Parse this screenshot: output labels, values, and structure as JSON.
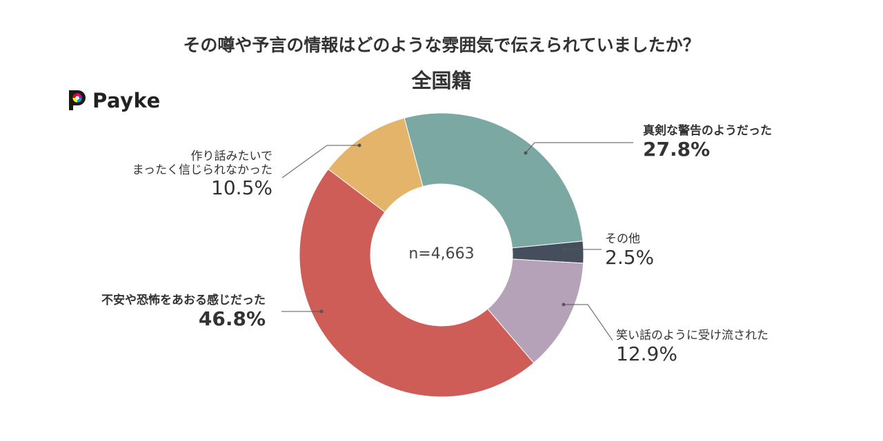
{
  "title": "その噂や予言の情報はどのような雰囲気で伝えられていましたか？",
  "subtitle": "全国籍",
  "logo": {
    "text": "Payke"
  },
  "center_label": "n=4,663",
  "colors": {
    "serious_warning": "#7ba8a2",
    "other": "#454e5c",
    "laughed_off": "#b5a1b8",
    "anxiety_fear": "#ce5c57",
    "not_believed": "#e3b46a"
  },
  "chart_data": {
    "type": "pie",
    "donut": true,
    "n": "n=4,663",
    "slices": [
      {
        "label": "真剣な警告のようだった",
        "value": 27.8,
        "display": "27.8%",
        "color": "#7ba8a2"
      },
      {
        "label": "その他",
        "value": 2.5,
        "display": "2.5%",
        "color": "#454e5c"
      },
      {
        "label": "笑い話のように受け流された",
        "value": 12.9,
        "display": "12.9%",
        "color": "#b5a1b8"
      },
      {
        "label": "不安や恐怖をあおる感じだった",
        "value": 46.8,
        "display": "46.8%",
        "color": "#ce5c57"
      },
      {
        "label_line1": "作り話みたいで",
        "label_line2": "まったく信じられなかった",
        "value": 10.5,
        "display": "10.5%",
        "color": "#e3b46a"
      }
    ]
  }
}
